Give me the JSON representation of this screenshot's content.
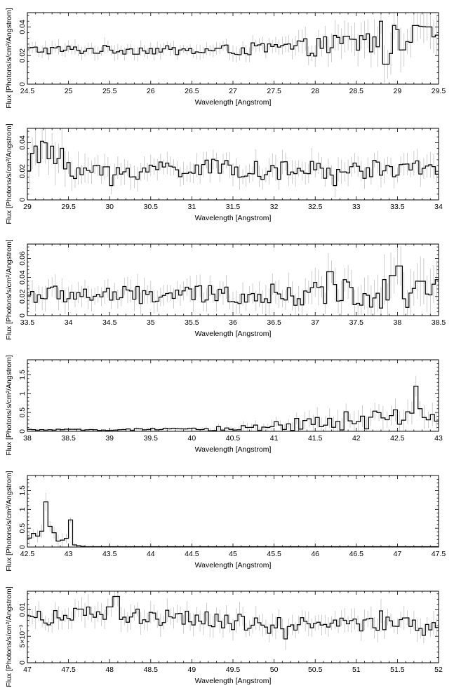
{
  "chart_data": [
    {
      "type": "line",
      "xlabel": "Wavelength [Angstrom]",
      "ylabel": "Flux [Photons/s/cm²/Angstrom]",
      "xlim": [
        24.5,
        29.5
      ],
      "ylim": [
        0,
        0.05
      ],
      "xticks": [
        "24.5",
        "25",
        "25.5",
        "26",
        "26.5",
        "27",
        "27.5",
        "28",
        "28.5",
        "29",
        "29.5"
      ],
      "xtick_values": [
        24.5,
        25,
        25.5,
        26,
        26.5,
        27,
        27.5,
        28,
        28.5,
        29,
        29.5
      ],
      "yticks": [
        "0",
        "0.02",
        "0.04"
      ],
      "ytick_values": [
        0,
        0.02,
        0.04
      ],
      "series": [
        {
          "step": 0.04,
          "x_start": 24.5,
          "x_end": 29.5,
          "anchors": [
            [
              24.5,
              0.024
            ],
            [
              25.0,
              0.024
            ],
            [
              25.5,
              0.024
            ],
            [
              26.0,
              0.024
            ],
            [
              26.5,
              0.023
            ],
            [
              27.0,
              0.024
            ],
            [
              27.5,
              0.025
            ],
            [
              28.0,
              0.026
            ],
            [
              28.5,
              0.029
            ],
            [
              29.0,
              0.031
            ],
            [
              29.5,
              0.03
            ]
          ],
          "noise": [
            0.002,
            0.002,
            0.002,
            0.002,
            0.002,
            0.0025,
            0.003,
            0.004,
            0.006,
            0.007,
            0.007
          ],
          "spikes": [
            [
              28.82,
              0.044
            ],
            [
              28.86,
              0.014
            ],
            [
              29.22,
              0.041
            ],
            [
              29.38,
              0.04
            ]
          ]
        }
      ]
    },
    {
      "type": "line",
      "xlabel": "Wavelength [Angstrom]",
      "ylabel": "Flux [Photons/s/cm²/Angstrom]",
      "xlim": [
        29,
        34
      ],
      "ylim": [
        0,
        0.05
      ],
      "xticks": [
        "29",
        "29.5",
        "30",
        "30.5",
        "31",
        "31.5",
        "32",
        "32.5",
        "33",
        "33.5",
        "34"
      ],
      "xtick_values": [
        29,
        29.5,
        30,
        30.5,
        31,
        31.5,
        32,
        32.5,
        33,
        33.5,
        34
      ],
      "yticks": [
        "0",
        "0.02",
        "0.04"
      ],
      "ytick_values": [
        0,
        0.02,
        0.04
      ],
      "series": [
        {
          "step": 0.04,
          "x_start": 29,
          "x_end": 34,
          "anchors": [
            [
              29.0,
              0.028
            ],
            [
              29.3,
              0.03
            ],
            [
              29.6,
              0.022
            ],
            [
              30.0,
              0.018
            ],
            [
              30.5,
              0.022
            ],
            [
              31.0,
              0.022
            ],
            [
              31.5,
              0.022
            ],
            [
              32.0,
              0.02
            ],
            [
              32.5,
              0.021
            ],
            [
              33.0,
              0.021
            ],
            [
              33.5,
              0.022
            ],
            [
              34.0,
              0.021
            ]
          ],
          "noise": [
            0.006,
            0.007,
            0.005,
            0.004,
            0.004,
            0.004,
            0.004,
            0.004,
            0.004,
            0.004,
            0.004,
            0.004
          ],
          "spikes": [
            [
              29.18,
              0.041
            ],
            [
              29.42,
              0.036
            ],
            [
              30.02,
              0.01
            ],
            [
              32.74,
              0.01
            ]
          ]
        }
      ]
    },
    {
      "type": "line",
      "xlabel": "Wavelength [Angstrom]",
      "ylabel": "Flux [Photons/s/cm²/Angstrom]",
      "xlim": [
        33.5,
        38.5
      ],
      "ylim": [
        0,
        0.075
      ],
      "xticks": [
        "33.5",
        "34",
        "34.5",
        "35",
        "35.5",
        "36",
        "36.5",
        "37",
        "37.5",
        "38",
        "38.5"
      ],
      "xtick_values": [
        33.5,
        34,
        34.5,
        35,
        35.5,
        36,
        36.5,
        37,
        37.5,
        38,
        38.5
      ],
      "yticks": [
        "0",
        "0.02",
        "0.04",
        "0.06"
      ],
      "ytick_values": [
        0,
        0.02,
        0.04,
        0.06
      ],
      "series": [
        {
          "step": 0.04,
          "x_start": 33.5,
          "x_end": 38.5,
          "anchors": [
            [
              33.5,
              0.022
            ],
            [
              34.0,
              0.022
            ],
            [
              34.5,
              0.021
            ],
            [
              35.0,
              0.021
            ],
            [
              35.5,
              0.022
            ],
            [
              36.0,
              0.022
            ],
            [
              36.5,
              0.022
            ],
            [
              37.0,
              0.022
            ],
            [
              37.5,
              0.024
            ],
            [
              38.0,
              0.026
            ],
            [
              38.5,
              0.025
            ]
          ],
          "noise": [
            0.006,
            0.006,
            0.006,
            0.006,
            0.006,
            0.006,
            0.007,
            0.008,
            0.01,
            0.012,
            0.012
          ],
          "spikes": [
            [
              37.18,
              0.046
            ],
            [
              37.94,
              0.042
            ],
            [
              38.02,
              0.052
            ],
            [
              38.3,
              0.036
            ]
          ]
        }
      ]
    },
    {
      "type": "line",
      "xlabel": "Wavelength [Angstrom]",
      "ylabel": "Flux [Photons/s/cm²/Angstrom]",
      "xlim": [
        38,
        43
      ],
      "ylim": [
        0,
        1.9
      ],
      "xticks": [
        "38",
        "38.5",
        "39",
        "39.5",
        "40",
        "40.5",
        "41",
        "41.5",
        "42",
        "42.5",
        "43"
      ],
      "xtick_values": [
        38,
        38.5,
        39,
        39.5,
        40,
        40.5,
        41,
        41.5,
        42,
        42.5,
        43
      ],
      "yticks": [
        "0",
        "0.5",
        "1",
        "1.5"
      ],
      "ytick_values": [
        0,
        0.5,
        1,
        1.5
      ],
      "series": [
        {
          "step": 0.05,
          "x_start": 38,
          "x_end": 43,
          "anchors": [
            [
              38.0,
              0.04
            ],
            [
              39.0,
              0.04
            ],
            [
              39.5,
              0.05
            ],
            [
              40.0,
              0.05
            ],
            [
              40.5,
              0.08
            ],
            [
              41.0,
              0.15
            ],
            [
              41.5,
              0.22
            ],
            [
              42.0,
              0.28
            ],
            [
              42.5,
              0.32
            ],
            [
              43.0,
              0.35
            ]
          ],
          "noise": [
            0.01,
            0.01,
            0.02,
            0.02,
            0.05,
            0.08,
            0.12,
            0.15,
            0.16,
            0.16
          ],
          "spikes": [
            [
              41.88,
              0.52
            ],
            [
              42.72,
              1.2
            ],
            [
              42.78,
              0.6
            ]
          ]
        }
      ]
    },
    {
      "type": "line",
      "xlabel": "Wavelength [Angstrom]",
      "ylabel": "Flux [Photons/s/cm²/Angstrom]",
      "xlim": [
        42.5,
        47.5
      ],
      "ylim": [
        0,
        1.9
      ],
      "xticks": [
        "42.5",
        "43",
        "43.5",
        "44",
        "44.5",
        "45",
        "45.5",
        "46",
        "46.5",
        "47",
        "47.5"
      ],
      "xtick_values": [
        42.5,
        43,
        43.5,
        44,
        44.5,
        45,
        45.5,
        46,
        46.5,
        47,
        47.5
      ],
      "yticks": [
        "0",
        "0.5",
        "1",
        "1.5"
      ],
      "ytick_values": [
        0,
        0.5,
        1,
        1.5
      ],
      "series": [
        {
          "step": 0.05,
          "x_start": 42.5,
          "x_end": 47.5,
          "anchors": [
            [
              42.5,
              0.32
            ],
            [
              42.7,
              0.35
            ],
            [
              42.9,
              0.32
            ],
            [
              43.05,
              0.05
            ],
            [
              43.2,
              0.01
            ],
            [
              47.5,
              0.01
            ]
          ],
          "noise": [
            0.1,
            0.1,
            0.12,
            0.02,
            0.0,
            0.0
          ],
          "spikes": [
            [
              42.72,
              1.2
            ],
            [
              42.78,
              0.55
            ],
            [
              43.02,
              0.72
            ]
          ]
        }
      ]
    },
    {
      "type": "line",
      "xlabel": "Wavelength [Angstrom]",
      "ylabel": "Flux [Photons/s/cm²/Angstrom]",
      "xlim": [
        47,
        52
      ],
      "ylim": [
        0,
        0.0135
      ],
      "xticks": [
        "47",
        "47.5",
        "48",
        "48.5",
        "49",
        "49.5",
        "50",
        "50.5",
        "51",
        "51.5",
        "52"
      ],
      "xtick_values": [
        47,
        47.5,
        48,
        48.5,
        49,
        49.5,
        50,
        50.5,
        51,
        51.5,
        52
      ],
      "yticks": [
        "0",
        "5×10⁻³",
        "0.01"
      ],
      "ytick_values": [
        0,
        0.005,
        0.01
      ],
      "series": [
        {
          "step": 0.04,
          "x_start": 47,
          "x_end": 52,
          "anchors": [
            [
              47.0,
              0.0085
            ],
            [
              47.5,
              0.0088
            ],
            [
              48.0,
              0.009
            ],
            [
              48.5,
              0.0085
            ],
            [
              49.0,
              0.0082
            ],
            [
              49.5,
              0.0078
            ],
            [
              50.0,
              0.007
            ],
            [
              50.5,
              0.0075
            ],
            [
              51.0,
              0.0072
            ],
            [
              51.5,
              0.0072
            ],
            [
              52.0,
              0.0065
            ]
          ],
          "noise": [
            0.001,
            0.001,
            0.0011,
            0.001,
            0.001,
            0.001,
            0.001,
            0.001,
            0.001,
            0.001,
            0.001
          ],
          "spikes": [
            [
              48.08,
              0.0125
            ],
            [
              50.14,
              0.0045
            ],
            [
              51.3,
              0.0098
            ]
          ]
        }
      ]
    }
  ]
}
